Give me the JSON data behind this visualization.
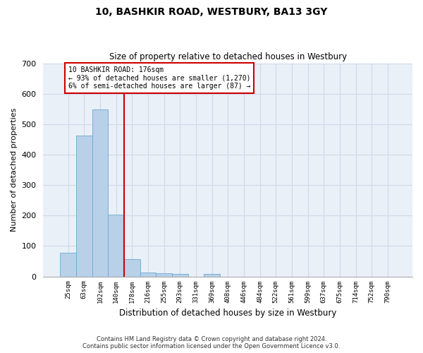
{
  "title": "10, BASHKIR ROAD, WESTBURY, BA13 3GY",
  "subtitle": "Size of property relative to detached houses in Westbury",
  "xlabel": "Distribution of detached houses by size in Westbury",
  "ylabel": "Number of detached properties",
  "bar_labels": [
    "25sqm",
    "63sqm",
    "102sqm",
    "140sqm",
    "178sqm",
    "216sqm",
    "255sqm",
    "293sqm",
    "331sqm",
    "369sqm",
    "408sqm",
    "446sqm",
    "484sqm",
    "522sqm",
    "561sqm",
    "599sqm",
    "637sqm",
    "675sqm",
    "714sqm",
    "752sqm",
    "790sqm"
  ],
  "bar_values": [
    78,
    462,
    548,
    204,
    57,
    14,
    10,
    9,
    0,
    8,
    0,
    0,
    0,
    0,
    0,
    0,
    0,
    0,
    0,
    0,
    0
  ],
  "bar_color": "#b8d0e8",
  "bar_edge_color": "#6aaad4",
  "grid_color": "#d0d8e8",
  "background_color": "#eaf0f8",
  "annotation_text": "10 BASHKIR ROAD: 176sqm\n← 93% of detached houses are smaller (1,270)\n6% of semi-detached houses are larger (87) →",
  "annotation_box_color": "#ffffff",
  "annotation_box_edge": "#cc0000",
  "property_line_color": "#cc0000",
  "ylim": [
    0,
    700
  ],
  "yticks": [
    0,
    100,
    200,
    300,
    400,
    500,
    600,
    700
  ],
  "footer_line1": "Contains HM Land Registry data © Crown copyright and database right 2024.",
  "footer_line2": "Contains public sector information licensed under the Open Government Licence v3.0."
}
